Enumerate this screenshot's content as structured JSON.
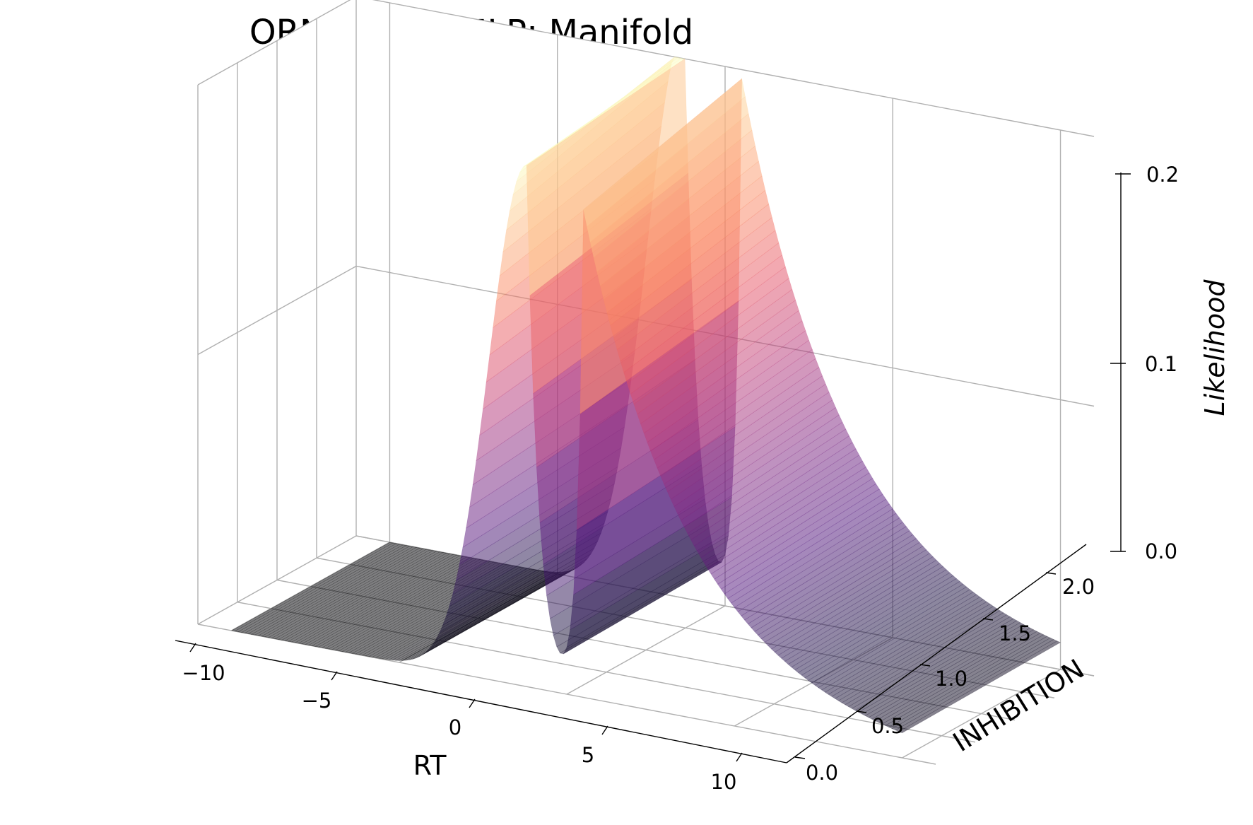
{
  "chart_data": {
    "type": "surface3d",
    "title": "ORNSTEIN - MLP: Manifold",
    "xlabel": "RT",
    "ylabel": "INHIBITION",
    "zlabel": "Likelihood",
    "xlim": [
      -11,
      11
    ],
    "ylim": [
      0,
      2
    ],
    "zlim": [
      0,
      0.2
    ],
    "x_ticks": [
      "−10",
      "−5",
      "0",
      "5",
      "10"
    ],
    "x_tick_values": [
      -10,
      -5,
      0,
      5,
      10
    ],
    "y_ticks": [
      "0.0",
      "0.5",
      "1.0",
      "1.5",
      "2.0"
    ],
    "y_tick_values": [
      0,
      0.5,
      1.0,
      1.5,
      2.0
    ],
    "z_ticks": [
      "0.0",
      "0.1",
      "0.2"
    ],
    "z_tick_values": [
      0,
      0.1,
      0.2
    ],
    "colormap": "magma",
    "surface_alpha": 0.5,
    "surface": {
      "description_values": "likelihood over RT and inhibition; two sharp ridges rising near RT = -1.2 and RT = +0.5 peaking about 0.19-0.21, decaying toward larger |RT|",
      "peak_left": {
        "rt": -1.2,
        "height": 0.21
      },
      "peak_right": {
        "rt": 0.5,
        "height": 0.195
      }
    },
    "grid": true
  }
}
